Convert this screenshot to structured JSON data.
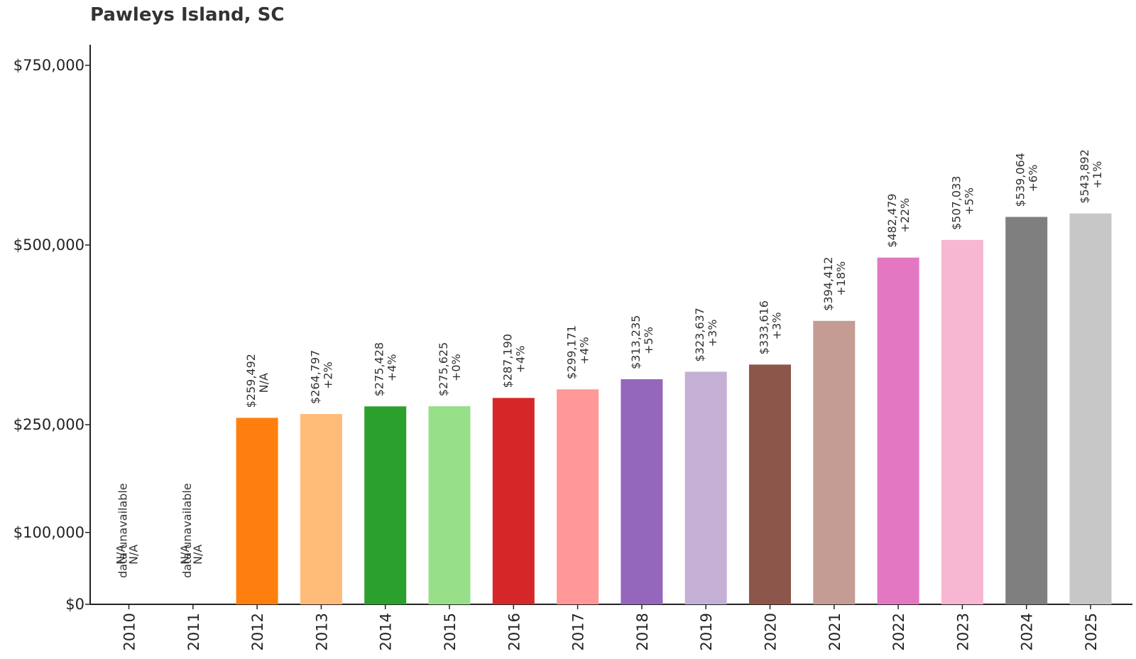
{
  "chart_data": {
    "type": "bar",
    "title": "Pawleys Island, SC",
    "xlabel": "",
    "ylabel": "",
    "ylim": [
      0,
      840000
    ],
    "yticks": [
      {
        "value": 0,
        "label": "$0"
      },
      {
        "value": 100000,
        "label": "$100,000"
      },
      {
        "value": 250000,
        "label": "$250,000"
      },
      {
        "value": 500000,
        "label": "$500,000"
      },
      {
        "value": 750000,
        "label": "$750,000"
      }
    ],
    "grid": false,
    "legend": "none",
    "categories": [
      "2010",
      "2011",
      "2012",
      "2013",
      "2014",
      "2015",
      "2016",
      "2017",
      "2018",
      "2019",
      "2020",
      "2021",
      "2022",
      "2023",
      "2024",
      "2025"
    ],
    "values": [
      null,
      null,
      259492,
      264797,
      275428,
      275625,
      287190,
      299171,
      313235,
      323637,
      333616,
      394412,
      482479,
      507033,
      539064,
      543892
    ],
    "value_labels": [
      "N/A",
      "N/A",
      "$259,492",
      "$264,797",
      "$275,428",
      "$275,625",
      "$287,190",
      "$299,171",
      "$313,235",
      "$323,637",
      "$333,616",
      "$394,412",
      "$482,479",
      "$507,033",
      "$539,064",
      "$543,892"
    ],
    "change_labels": [
      "N/A",
      "N/A",
      "N/A",
      "+2%",
      "+4%",
      "+0%",
      "+4%",
      "+4%",
      "+5%",
      "+3%",
      "+3%",
      "+18%",
      "+22%",
      "+5%",
      "+6%",
      "+1%"
    ],
    "missing_note": "data unavailable",
    "colors": [
      "#1f77b4",
      "#aec7e8",
      "#ff7f0e",
      "#ffbb78",
      "#2ca02c",
      "#98df8a",
      "#d62728",
      "#ff9896",
      "#9467bd",
      "#c5b0d5",
      "#8c564b",
      "#c49c94",
      "#e377c2",
      "#f7b6d2",
      "#7f7f7f",
      "#c7c7c7"
    ]
  }
}
